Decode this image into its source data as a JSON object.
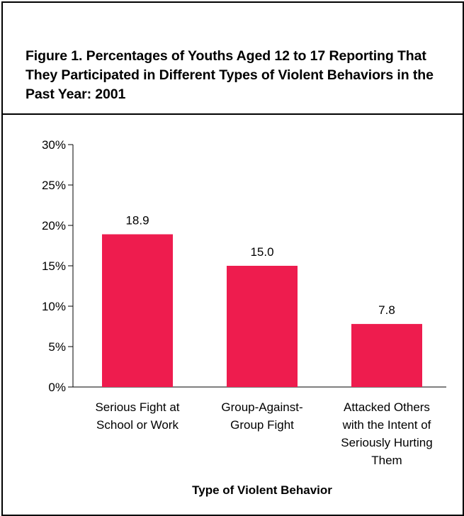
{
  "chart_data": {
    "type": "bar",
    "title": "Figure 1.  Percentages of Youths Aged 12 to 17 Reporting That They Participated in Different Types of Violent Behaviors in the Past Year:  2001",
    "xlabel": "Type of Violent Behavior",
    "ylabel": "",
    "ylim": [
      0,
      30
    ],
    "yticks": [
      0,
      5,
      10,
      15,
      20,
      25,
      30
    ],
    "ytick_labels": [
      "0%",
      "5%",
      "10%",
      "15%",
      "20%",
      "25%",
      "30%"
    ],
    "categories": [
      "Serious Fight at School or Work",
      "Group-Against-Group Fight",
      "Attacked Others with the Intent of Seriously Hurting Them"
    ],
    "category_lines": [
      [
        "Serious Fight at",
        "School or Work"
      ],
      [
        "Group-Against-",
        "Group Fight"
      ],
      [
        "Attacked Others",
        "with the Intent of",
        "Seriously Hurting",
        "Them"
      ]
    ],
    "values": [
      18.9,
      15.0,
      7.8
    ],
    "data_labels": [
      "18.9",
      "15.0",
      "7.8"
    ],
    "bar_color": "#ee1c4e",
    "grid": false,
    "legend": "none"
  }
}
